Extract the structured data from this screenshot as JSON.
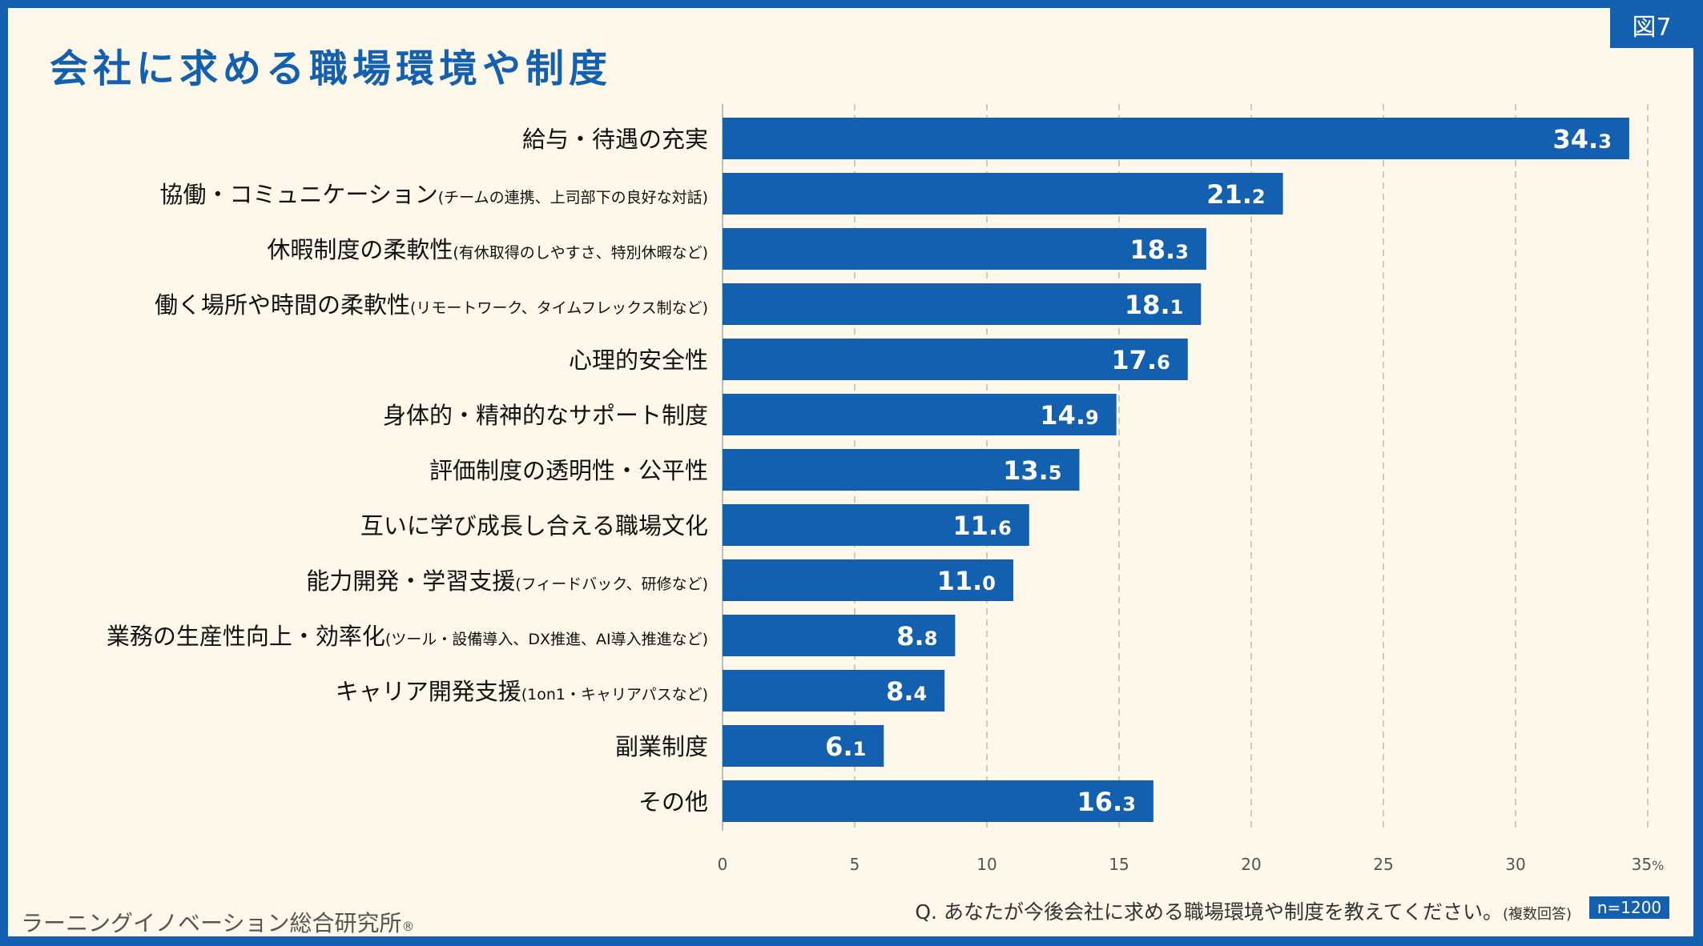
{
  "header": {
    "title": "会社に求める職場環境や制度",
    "figure_label": "図7"
  },
  "footer": {
    "organization": "ラーニングイノベーション総合研究所",
    "registered_mark": "®",
    "question": "Q. あなたが今後会社に求める職場環境や制度を教えてください。",
    "question_note": "(複数回答)",
    "sample_size": "n=1200"
  },
  "colors": {
    "bar": "#1460b0",
    "background": "#fdf8e9",
    "frame": "#1460b0"
  },
  "chart_data": {
    "type": "bar",
    "orientation": "horizontal",
    "title": "会社に求める職場環境や制度",
    "xlim": [
      0,
      35
    ],
    "x_ticks": [
      "0",
      "5",
      "10",
      "15",
      "20",
      "25",
      "30",
      "35"
    ],
    "x_unit": "%",
    "grid": "vertical-dashed",
    "categories": [
      {
        "main": "給与・待遇の充実",
        "sub": ""
      },
      {
        "main": "協働・コミュニケーション",
        "sub": "(チームの連携、上司部下の良好な対話)"
      },
      {
        "main": "休暇制度の柔軟性",
        "sub": "(有休取得のしやすさ、特別休暇など)"
      },
      {
        "main": "働く場所や時間の柔軟性",
        "sub": "(リモートワーク、タイムフレックス制など)"
      },
      {
        "main": "心理的安全性",
        "sub": ""
      },
      {
        "main": "身体的・精神的なサポート制度",
        "sub": ""
      },
      {
        "main": "評価制度の透明性・公平性",
        "sub": ""
      },
      {
        "main": "互いに学び成長し合える職場文化",
        "sub": ""
      },
      {
        "main": "能力開発・学習支援",
        "sub": "(フィードバック、研修など)"
      },
      {
        "main": "業務の生産性向上・効率化",
        "sub": "(ツール・設備導入、DX推進、AI導入推進など)"
      },
      {
        "main": "キャリア開発支援",
        "sub": "(1on1・キャリアパスなど)"
      },
      {
        "main": "副業制度",
        "sub": ""
      },
      {
        "main": "その他",
        "sub": ""
      }
    ],
    "values": [
      34.3,
      21.2,
      18.3,
      18.1,
      17.6,
      14.9,
      13.5,
      11.6,
      11.0,
      8.8,
      8.4,
      6.1,
      16.3
    ]
  }
}
